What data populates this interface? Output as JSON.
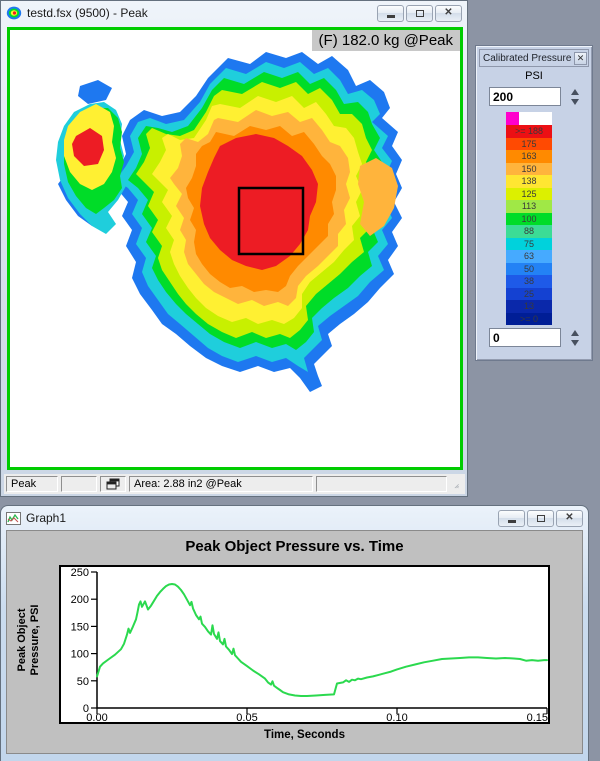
{
  "desktop": {
    "background": "#8C94A4"
  },
  "map_window": {
    "title": "testd.fsx (9500) - Peak",
    "force_label": "(F) 182.0 kg @Peak",
    "canvas_border_color": "#00CC00",
    "status": {
      "mode": "Peak",
      "area": "Area: 2.88 in2 @Peak"
    },
    "map_palette": {
      "blue": "#1E78F0",
      "cyan": "#1FCEDC",
      "green": "#00DC28",
      "yellow_green": "#C8F000",
      "yellow": "#FFF032",
      "amber": "#FFB43C",
      "orange": "#FF8A00",
      "red": "#ED1C24"
    },
    "roi_stroke": "#000000"
  },
  "legend_panel": {
    "title": "Calibrated Pressure",
    "units": "PSI",
    "max_input": "200",
    "min_input": "0",
    "overflow_color": "#FF00CC",
    "bands": [
      {
        "label": ">= 188",
        "color": "#EC1014"
      },
      {
        "label": "175",
        "color": "#FF4A02"
      },
      {
        "label": "163",
        "color": "#FF8A00"
      },
      {
        "label": "150",
        "color": "#FFB43C"
      },
      {
        "label": "138",
        "color": "#FFE632"
      },
      {
        "label": "125",
        "color": "#DCF000"
      },
      {
        "label": "113",
        "color": "#A0E846"
      },
      {
        "label": "100",
        "color": "#00DC28"
      },
      {
        "label": "88",
        "color": "#3CDC96"
      },
      {
        "label": "75",
        "color": "#00D2DC"
      },
      {
        "label": "63",
        "color": "#46AAFF"
      },
      {
        "label": "50",
        "color": "#2382F5"
      },
      {
        "label": "38",
        "color": "#1E5AE8"
      },
      {
        "label": "25",
        "color": "#1441D2"
      },
      {
        "label": "13",
        "color": "#0A28AA"
      },
      {
        "label": ">= 0",
        "color": "#001E96"
      }
    ]
  },
  "graph_window": {
    "title": "Graph1"
  },
  "chart_data": {
    "type": "line",
    "title": "Peak Object Pressure vs. Time",
    "xlabel": "Time, Seconds",
    "ylabel_lines": [
      "Peak Object",
      "Pressure, PSI"
    ],
    "xlim": [
      0,
      0.15
    ],
    "ylim": [
      0,
      250
    ],
    "x_ticks": [
      0,
      0.05,
      0.1,
      0.15
    ],
    "x_tick_labels": [
      "0.00",
      "0.05",
      "0.10",
      "0.15"
    ],
    "y_ticks": [
      0,
      50,
      100,
      150,
      200,
      250
    ],
    "y_tick_labels": [
      "0",
      "50",
      "100",
      "150",
      "200",
      "250"
    ],
    "grid": false,
    "legend_position": "none",
    "line_color": "#2BD94E",
    "points": [
      [
        0,
        58
      ],
      [
        0.001,
        76
      ],
      [
        0.002,
        82
      ],
      [
        0.004,
        90
      ],
      [
        0.006,
        98
      ],
      [
        0.008,
        108
      ],
      [
        0.009,
        118
      ],
      [
        0.01,
        135
      ],
      [
        0.0105,
        146
      ],
      [
        0.011,
        138
      ],
      [
        0.012,
        150
      ],
      [
        0.013,
        163
      ],
      [
        0.0135,
        176
      ],
      [
        0.014,
        190
      ],
      [
        0.0145,
        196
      ],
      [
        0.015,
        186
      ],
      [
        0.016,
        196
      ],
      [
        0.017,
        181
      ],
      [
        0.018,
        188
      ],
      [
        0.019,
        197
      ],
      [
        0.02,
        206
      ],
      [
        0.021,
        213
      ],
      [
        0.022,
        219
      ],
      [
        0.023,
        224
      ],
      [
        0.024,
        227
      ],
      [
        0.025,
        228
      ],
      [
        0.026,
        227
      ],
      [
        0.027,
        223
      ],
      [
        0.028,
        217
      ],
      [
        0.029,
        209
      ],
      [
        0.03,
        199
      ],
      [
        0.031,
        189
      ],
      [
        0.0315,
        195
      ],
      [
        0.032,
        183
      ],
      [
        0.033,
        171
      ],
      [
        0.034,
        163
      ],
      [
        0.0345,
        168
      ],
      [
        0.035,
        155
      ],
      [
        0.036,
        149
      ],
      [
        0.037,
        141
      ],
      [
        0.038,
        135
      ],
      [
        0.0385,
        152
      ],
      [
        0.039,
        136
      ],
      [
        0.04,
        127
      ],
      [
        0.0405,
        139
      ],
      [
        0.041,
        123
      ],
      [
        0.042,
        117
      ],
      [
        0.0425,
        127
      ],
      [
        0.043,
        113
      ],
      [
        0.044,
        107
      ],
      [
        0.045,
        99
      ],
      [
        0.0455,
        109
      ],
      [
        0.046,
        97
      ],
      [
        0.047,
        91
      ],
      [
        0.048,
        85
      ],
      [
        0.049,
        81
      ],
      [
        0.05,
        77
      ],
      [
        0.052,
        69
      ],
      [
        0.054,
        62
      ],
      [
        0.056,
        54
      ],
      [
        0.057,
        47
      ],
      [
        0.058,
        43
      ],
      [
        0.0585,
        49
      ],
      [
        0.059,
        41
      ],
      [
        0.06,
        37
      ],
      [
        0.061,
        33
      ],
      [
        0.062,
        29
      ],
      [
        0.064,
        25
      ],
      [
        0.066,
        23
      ],
      [
        0.068,
        22
      ],
      [
        0.07,
        22
      ],
      [
        0.073,
        23
      ],
      [
        0.076,
        24
      ],
      [
        0.079,
        25
      ],
      [
        0.08,
        45
      ],
      [
        0.082,
        47
      ],
      [
        0.083,
        51
      ],
      [
        0.084,
        48
      ],
      [
        0.085,
        52
      ],
      [
        0.086,
        51
      ],
      [
        0.087,
        54
      ],
      [
        0.088,
        53
      ],
      [
        0.09,
        56
      ],
      [
        0.092,
        58
      ],
      [
        0.094,
        61
      ],
      [
        0.096,
        64
      ],
      [
        0.098,
        67
      ],
      [
        0.1,
        71
      ],
      [
        0.103,
        76
      ],
      [
        0.106,
        80
      ],
      [
        0.109,
        84
      ],
      [
        0.112,
        87
      ],
      [
        0.115,
        90
      ],
      [
        0.118,
        91
      ],
      [
        0.121,
        92
      ],
      [
        0.124,
        93
      ],
      [
        0.127,
        93
      ],
      [
        0.13,
        92
      ],
      [
        0.133,
        91
      ],
      [
        0.136,
        92
      ],
      [
        0.139,
        91
      ],
      [
        0.141,
        90
      ],
      [
        0.143,
        87
      ],
      [
        0.145,
        88
      ],
      [
        0.147,
        87
      ],
      [
        0.149,
        88
      ],
      [
        0.15,
        88
      ]
    ]
  }
}
